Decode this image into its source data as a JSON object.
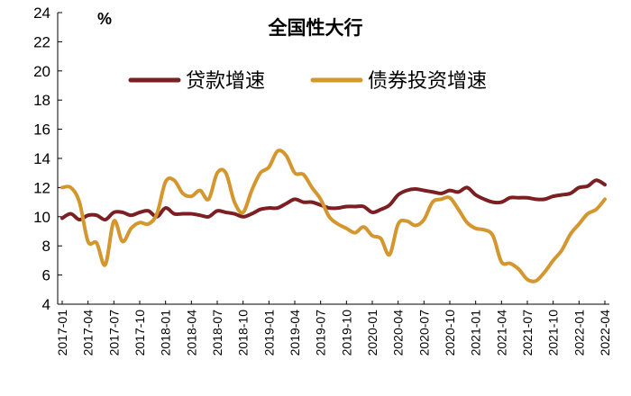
{
  "chart_data": {
    "type": "line",
    "title": "全国性大行",
    "ylabel": "%",
    "xlabel": "",
    "ylim": [
      4,
      24
    ],
    "yticks": [
      4,
      6,
      8,
      10,
      12,
      14,
      16,
      18,
      20,
      22,
      24
    ],
    "grid": false,
    "legend_position": "top",
    "x": [
      "2017-01",
      "2017-02",
      "2017-03",
      "2017-04",
      "2017-05",
      "2017-06",
      "2017-07",
      "2017-08",
      "2017-09",
      "2017-10",
      "2017-11",
      "2017-12",
      "2018-01",
      "2018-02",
      "2018-03",
      "2018-04",
      "2018-05",
      "2018-06",
      "2018-07",
      "2018-08",
      "2018-09",
      "2018-10",
      "2018-11",
      "2018-12",
      "2019-01",
      "2019-02",
      "2019-03",
      "2019-04",
      "2019-05",
      "2019-06",
      "2019-07",
      "2019-08",
      "2019-09",
      "2019-10",
      "2019-11",
      "2019-12",
      "2020-01",
      "2020-02",
      "2020-03",
      "2020-04",
      "2020-05",
      "2020-06",
      "2020-07",
      "2020-08",
      "2020-09",
      "2020-10",
      "2020-11",
      "2020-12",
      "2021-01",
      "2021-02",
      "2021-03",
      "2021-04",
      "2021-05",
      "2021-06",
      "2021-07",
      "2021-08",
      "2021-09",
      "2021-10",
      "2021-11",
      "2021-12",
      "2022-01",
      "2022-02",
      "2022-03",
      "2022-04"
    ],
    "xtick_labels": [
      "2017-01",
      "2017-04",
      "2017-07",
      "2017-10",
      "2018-01",
      "2018-04",
      "2018-07",
      "2018-10",
      "2019-01",
      "2019-04",
      "2019-07",
      "2019-10",
      "2020-01",
      "2020-04",
      "2020-07",
      "2020-10",
      "2021-01",
      "2021-04",
      "2021-07",
      "2021-10",
      "2022-01",
      "2022-04"
    ],
    "series": [
      {
        "name": "贷款增速",
        "color": "#7B1F22",
        "values": [
          9.9,
          10.2,
          9.8,
          10.1,
          10.1,
          9.8,
          10.3,
          10.3,
          10.1,
          10.3,
          10.4,
          10.0,
          10.6,
          10.2,
          10.2,
          10.2,
          10.1,
          10.0,
          10.4,
          10.3,
          10.2,
          10.0,
          10.2,
          10.5,
          10.6,
          10.6,
          10.9,
          11.2,
          11.0,
          11.0,
          10.8,
          10.6,
          10.6,
          10.7,
          10.7,
          10.7,
          10.3,
          10.5,
          10.8,
          11.5,
          11.8,
          11.9,
          11.8,
          11.7,
          11.6,
          11.8,
          11.7,
          12.0,
          11.5,
          11.2,
          11.0,
          11.0,
          11.3,
          11.3,
          11.3,
          11.2,
          11.2,
          11.4,
          11.5,
          11.6,
          12.0,
          12.1,
          12.5,
          12.2
        ]
      },
      {
        "name": "债券投资增速",
        "color": "#D4962E",
        "values": [
          12.0,
          12.0,
          11.0,
          8.3,
          8.2,
          6.7,
          9.7,
          8.3,
          9.2,
          9.6,
          9.5,
          10.2,
          12.4,
          12.5,
          11.6,
          11.4,
          11.8,
          11.2,
          13.0,
          13.0,
          11.0,
          10.3,
          11.8,
          13.0,
          13.4,
          14.5,
          14.2,
          13.0,
          12.9,
          12.0,
          11.2,
          10.0,
          9.5,
          9.2,
          8.9,
          9.3,
          8.7,
          8.5,
          7.4,
          9.5,
          9.7,
          9.4,
          9.8,
          11.0,
          11.2,
          11.3,
          10.5,
          9.6,
          9.2,
          9.1,
          8.7,
          6.9,
          6.8,
          6.4,
          5.7,
          5.6,
          6.2,
          7.0,
          7.7,
          8.8,
          9.5,
          10.2,
          10.5,
          11.2
        ]
      }
    ]
  }
}
